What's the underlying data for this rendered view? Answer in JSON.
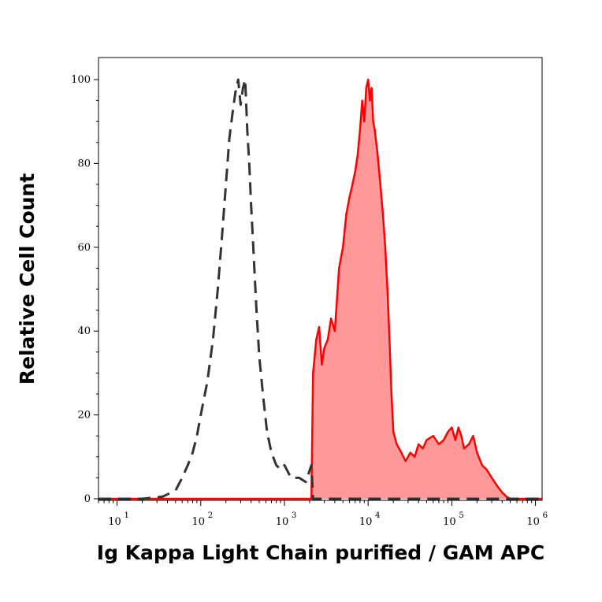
{
  "chart_data": {
    "type": "area",
    "xlabel": "Ig Kappa Light Chain purified / GAM APC",
    "ylabel": "Relative Cell Count",
    "x_scale": "log",
    "xlim": [
      6,
      1200000
    ],
    "ylim": [
      0,
      100
    ],
    "x_ticks": [
      {
        "base": "10",
        "exp": "1",
        "value": 10
      },
      {
        "base": "10",
        "exp": "2",
        "value": 100
      },
      {
        "base": "10",
        "exp": "3",
        "value": 1000
      },
      {
        "base": "10",
        "exp": "4",
        "value": 10000
      },
      {
        "base": "10",
        "exp": "5",
        "value": 100000
      },
      {
        "base": "10",
        "exp": "6",
        "value": 1000000
      }
    ],
    "y_ticks": [
      "0",
      "20",
      "40",
      "60",
      "80",
      "100"
    ],
    "grid": false,
    "legend": "none",
    "series": [
      {
        "style": "dashed",
        "color": "#333333",
        "fill": "none",
        "x": [
          6,
          20,
          35,
          50,
          60,
          70,
          80,
          90,
          100,
          120,
          140,
          160,
          180,
          200,
          220,
          240,
          260,
          280,
          300,
          320,
          340,
          360,
          380,
          400,
          430,
          460,
          500,
          560,
          620,
          700,
          800,
          900,
          1000,
          1200,
          1500,
          1800,
          2100,
          2200,
          5000,
          20000,
          100000,
          1000000,
          1200000
        ],
        "y": [
          0,
          0,
          0.5,
          2,
          5,
          8,
          11,
          15,
          20,
          28,
          38,
          50,
          63,
          75,
          86,
          92,
          97,
          100,
          94,
          98,
          100,
          88,
          80,
          70,
          58,
          46,
          34,
          24,
          16,
          11,
          8,
          7,
          8,
          5,
          5,
          4,
          8,
          0,
          0,
          0,
          0,
          0,
          0
        ]
      },
      {
        "style": "solid",
        "color": "#ff0000",
        "fill": "#ff9999",
        "x": [
          6,
          2100,
          2200,
          2400,
          2600,
          2800,
          3000,
          3300,
          3600,
          4000,
          4500,
          5000,
          5500,
          6000,
          6500,
          7000,
          7500,
          8000,
          8500,
          9000,
          9500,
          10000,
          10500,
          11000,
          11500,
          12000,
          13000,
          14000,
          15000,
          16000,
          17000,
          18000,
          19000,
          20000,
          22000,
          25000,
          28000,
          32000,
          36000,
          40000,
          45000,
          50000,
          60000,
          70000,
          80000,
          90000,
          100000,
          110000,
          120000,
          130000,
          140000,
          160000,
          180000,
          200000,
          230000,
          260000,
          300000,
          350000,
          400000,
          450000,
          500000,
          1000000,
          1200000
        ],
        "y": [
          0,
          0,
          30,
          38,
          41,
          32,
          36,
          38,
          43,
          40,
          55,
          60,
          68,
          72,
          75,
          78,
          82,
          88,
          95,
          90,
          98,
          100,
          95,
          98,
          90,
          88,
          82,
          75,
          68,
          60,
          50,
          38,
          25,
          16,
          13,
          11,
          9,
          11,
          10,
          13,
          12,
          14,
          15,
          13,
          14,
          16,
          17,
          14,
          17,
          15,
          12,
          13,
          15,
          11,
          8,
          7,
          5,
          3,
          1.5,
          0.5,
          0,
          0,
          0
        ]
      }
    ]
  }
}
